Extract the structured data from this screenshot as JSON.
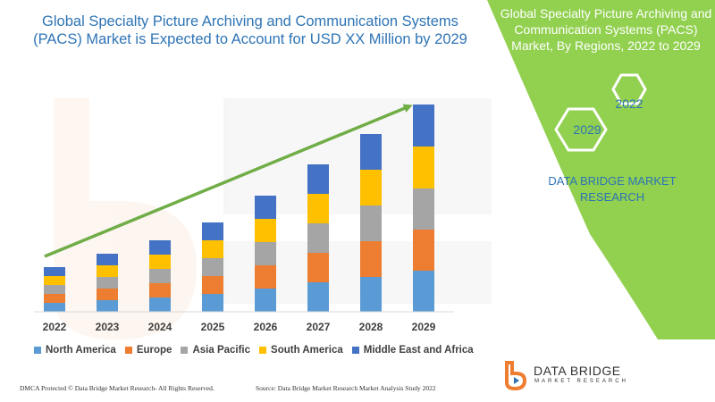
{
  "chart_data": {
    "type": "bar",
    "stacked": true,
    "title": "Global Specialty Picture Archiving and Communication Systems (PACS) Market is Expected to Account for USD XX Million by 2029",
    "categories": [
      "2022",
      "2023",
      "2024",
      "2025",
      "2026",
      "2027",
      "2028",
      "2029"
    ],
    "series": [
      {
        "name": "North America",
        "color": "#5b9bd5",
        "values": [
          10,
          13,
          16,
          20,
          26,
          33,
          39,
          46
        ]
      },
      {
        "name": "Europe",
        "color": "#ed7d31",
        "values": [
          10,
          13,
          16,
          20,
          26,
          33,
          40,
          46
        ]
      },
      {
        "name": "Asia Pacific",
        "color": "#a5a5a5",
        "values": [
          10,
          13,
          16,
          20,
          26,
          33,
          40,
          46
        ]
      },
      {
        "name": "South America",
        "color": "#ffc000",
        "values": [
          10,
          13,
          16,
          20,
          26,
          33,
          40,
          47
        ]
      },
      {
        "name": "Middle East and Africa",
        "color": "#4472c4",
        "values": [
          10,
          13,
          16,
          20,
          26,
          33,
          40,
          47
        ]
      }
    ],
    "ylim": [
      0,
      240
    ],
    "grid": false,
    "legend_position": "bottom",
    "trend_arrow_color": "#70ad47"
  },
  "panel": {
    "title": "Global Specialty Picture Archiving and Communication Systems (PACS) Market, By Regions, 2022 to 2029",
    "hex_year_1": "2022",
    "hex_year_2": "2029",
    "brand": "DATA BRIDGE MARKET RESEARCH",
    "panel_color": "#92d050"
  },
  "logo": {
    "name": "DATA BRIDGE",
    "sub": "MARKET RESEARCH"
  },
  "footer": {
    "left": "DMCA Protected © Data Bridge Market Research- All Rights Reserved.",
    "right": "Source: Data Bridge Market Research Market Analysis Study 2022"
  }
}
